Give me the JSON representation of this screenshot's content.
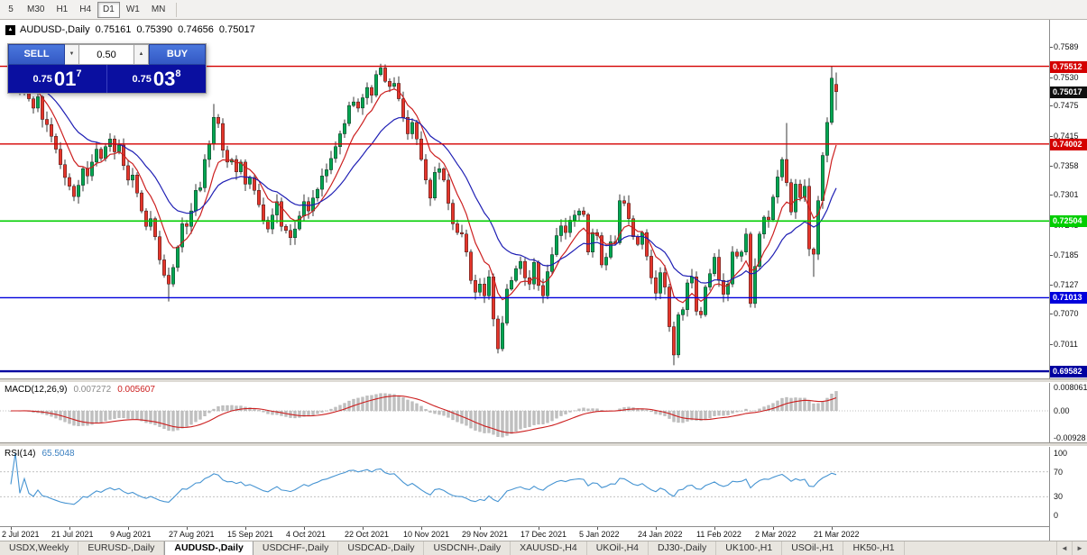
{
  "toolbar": {
    "timeframes": [
      {
        "label": "5",
        "active": false
      },
      {
        "label": "M30",
        "active": false
      },
      {
        "label": "H1",
        "active": false
      },
      {
        "label": "H4",
        "active": false
      },
      {
        "label": "D1",
        "active": true
      },
      {
        "label": "W1",
        "active": false
      },
      {
        "label": "MN",
        "active": false
      }
    ]
  },
  "chart": {
    "title_symbol": "AUDUSD-,Daily",
    "ohlc": {
      "open": "0.75161",
      "high": "0.75390",
      "low": "0.74656",
      "close": "0.75017"
    },
    "collapse_icon": "▲",
    "trade_widget": {
      "sell_label": "SELL",
      "buy_label": "BUY",
      "volume": "0.50",
      "caret_down": "▼",
      "caret_up": "▲",
      "sell_price": {
        "base": "0.75",
        "big": "01",
        "sup": "7"
      },
      "buy_price": {
        "base": "0.75",
        "big": "03",
        "sup": "8"
      }
    }
  },
  "chart_data": {
    "type": "candlestick",
    "symbol": "AUDUSD-",
    "timeframe": "Daily",
    "current_bar": {
      "open": 0.75161,
      "high": 0.7539,
      "low": 0.74656,
      "close": 0.75017
    },
    "first_open": 0.7545,
    "closes": [
      0.752,
      0.7535,
      0.7508,
      0.7532,
      0.7488,
      0.747,
      0.7492,
      0.7448,
      0.7438,
      0.7415,
      0.739,
      0.736,
      0.7335,
      0.7318,
      0.7298,
      0.732,
      0.7352,
      0.7338,
      0.7365,
      0.739,
      0.7372,
      0.7395,
      0.741,
      0.7385,
      0.7398,
      0.7358,
      0.733,
      0.734,
      0.7305,
      0.727,
      0.724,
      0.7255,
      0.722,
      0.7175,
      0.7145,
      0.7128,
      0.716,
      0.72,
      0.7245,
      0.724,
      0.727,
      0.731,
      0.7315,
      0.737,
      0.74,
      0.7452,
      0.744,
      0.7388,
      0.7365,
      0.737,
      0.7346,
      0.7365,
      0.7322,
      0.7335,
      0.731,
      0.7282,
      0.7252,
      0.7235,
      0.7262,
      0.7288,
      0.724,
      0.7232,
      0.7218,
      0.7235,
      0.726,
      0.7288,
      0.727,
      0.7295,
      0.7312,
      0.7338,
      0.735,
      0.7372,
      0.7395,
      0.742,
      0.744,
      0.7475,
      0.7482,
      0.747,
      0.749,
      0.751,
      0.7495,
      0.7535,
      0.7548,
      0.7522,
      0.7512,
      0.7518,
      0.7488,
      0.7452,
      0.742,
      0.7442,
      0.741,
      0.737,
      0.733,
      0.7295,
      0.7345,
      0.7352,
      0.733,
      0.7285,
      0.7245,
      0.7228,
      0.7225,
      0.719,
      0.7135,
      0.7112,
      0.7128,
      0.7105,
      0.7142,
      0.706,
      0.7002,
      0.7052,
      0.7118,
      0.7135,
      0.7158,
      0.7172,
      0.714,
      0.7128,
      0.717,
      0.7125,
      0.7105,
      0.7152,
      0.7185,
      0.7222,
      0.7241,
      0.7228,
      0.7252,
      0.7262,
      0.727,
      0.7263,
      0.719,
      0.7228,
      0.7222,
      0.7165,
      0.718,
      0.721,
      0.7208,
      0.729,
      0.7285,
      0.7255,
      0.722,
      0.7205,
      0.7228,
      0.7182,
      0.714,
      0.711,
      0.715,
      0.7122,
      0.7045,
      0.699,
      0.7068,
      0.7078,
      0.713,
      0.7142,
      0.7075,
      0.7068,
      0.7122,
      0.7148,
      0.718,
      0.7135,
      0.7108,
      0.7128,
      0.719,
      0.7182,
      0.719,
      0.7225,
      0.709,
      0.7162,
      0.7225,
      0.7258,
      0.7253,
      0.7297,
      0.7336,
      0.737,
      0.7325,
      0.7268,
      0.7322,
      0.7296,
      0.7318,
      0.7196,
      0.7186,
      0.729,
      0.7378,
      0.7442,
      0.7528,
      0.75017
    ],
    "wick_overrides": {
      "14": {
        "low": 0.7289
      },
      "35": {
        "low": 0.7094
      },
      "45": {
        "high": 0.7478
      },
      "82": {
        "high": 0.7556
      },
      "108": {
        "low": 0.6993
      },
      "147": {
        "low": 0.697
      },
      "164": {
        "low": 0.7082
      },
      "172": {
        "high": 0.7441
      },
      "178": {
        "low": 0.7142
      },
      "182": {
        "high": 0.7551
      }
    },
    "ma_fast": {
      "period": 8,
      "method": "ema",
      "color": "#cc1f1f"
    },
    "ma_slow": {
      "period": 21,
      "method": "ema",
      "color": "#1f1fb4"
    },
    "price_axis_labels": [
      0.7589,
      0.753,
      0.7475,
      0.7415,
      0.7358,
      0.7301,
      0.7243,
      0.7185,
      0.7127,
      0.707,
      0.7011
    ],
    "level_lines": [
      {
        "price": 0.75512,
        "label": "0.75512",
        "color": "#d40000",
        "width": 1.4
      },
      {
        "price": 0.74002,
        "label": "0.74002",
        "color": "#d40000",
        "width": 1.4
      },
      {
        "price": 0.72504,
        "label": "0.72504",
        "color": "#00ce00",
        "width": 1.6
      },
      {
        "price": 0.71013,
        "label": "0.71013",
        "color": "#0000dc",
        "width": 1.4
      },
      {
        "price": 0.69582,
        "label": "0.69582",
        "color": "#0000a0",
        "width": 2.4
      }
    ],
    "bid_badge": {
      "price": 0.75017,
      "label": "0.75017",
      "color": "#101010"
    },
    "date_labels": [
      "2 Jul 2021",
      "21 Jul 2021",
      "9 Aug 2021",
      "27 Aug 2021",
      "15 Sep 2021",
      "4 Oct 2021",
      "22 Oct 2021",
      "10 Nov 2021",
      "29 Nov 2021",
      "17 Dec 2021",
      "5 Jan 2022",
      "24 Jan 2022",
      "11 Feb 2022",
      "2 Mar 2022",
      "21 Mar 2022"
    ],
    "label_every": 13,
    "macd": {
      "name": "MACD(12,26,9)",
      "fast": 12,
      "slow": 26,
      "signal_period": 9,
      "value_main": "0.007272",
      "value_signal": "0.005607",
      "axis": [
        {
          "v": 0.008061,
          "text": "0.008061"
        },
        {
          "v": 0.0,
          "text": "0.00"
        },
        {
          "v": -0.00928,
          "text": "-0.00928"
        }
      ],
      "range": {
        "max": 0.008061,
        "min": -0.00928
      },
      "hist_color": "#bfbfbf",
      "signal_color": "#cc1f1f"
    },
    "rsi": {
      "name": "RSI(14)",
      "period": 14,
      "value": "65.5048",
      "axis": [
        {
          "v": 100,
          "text": "100"
        },
        {
          "v": 70,
          "text": "70"
        },
        {
          "v": 30,
          "text": "30"
        },
        {
          "v": 0,
          "text": "0"
        }
      ],
      "levels": [
        70,
        30
      ],
      "color": "#4694d2"
    },
    "candle_up_color": "#00a651",
    "candle_down_color": "#e5352b",
    "wick_color": "#222222"
  },
  "tabbar": {
    "scroll_left": "◄",
    "scroll_right": "►",
    "tabs": [
      {
        "label": "USDX,Weekly",
        "active": false
      },
      {
        "label": "EURUSD-,Daily",
        "active": false
      },
      {
        "label": "AUDUSD-,Daily",
        "active": true
      },
      {
        "label": "USDCHF-,Daily",
        "active": false
      },
      {
        "label": "USDCAD-,Daily",
        "active": false
      },
      {
        "label": "USDCNH-,Daily",
        "active": false
      },
      {
        "label": "XAUUSD-,H4",
        "active": false
      },
      {
        "label": "UKOil-,H4",
        "active": false
      },
      {
        "label": "DJ30-,Daily",
        "active": false
      },
      {
        "label": "UK100-,H1",
        "active": false
      },
      {
        "label": "USOil-,H1",
        "active": false
      },
      {
        "label": "HK50-,H1",
        "active": false
      }
    ]
  }
}
